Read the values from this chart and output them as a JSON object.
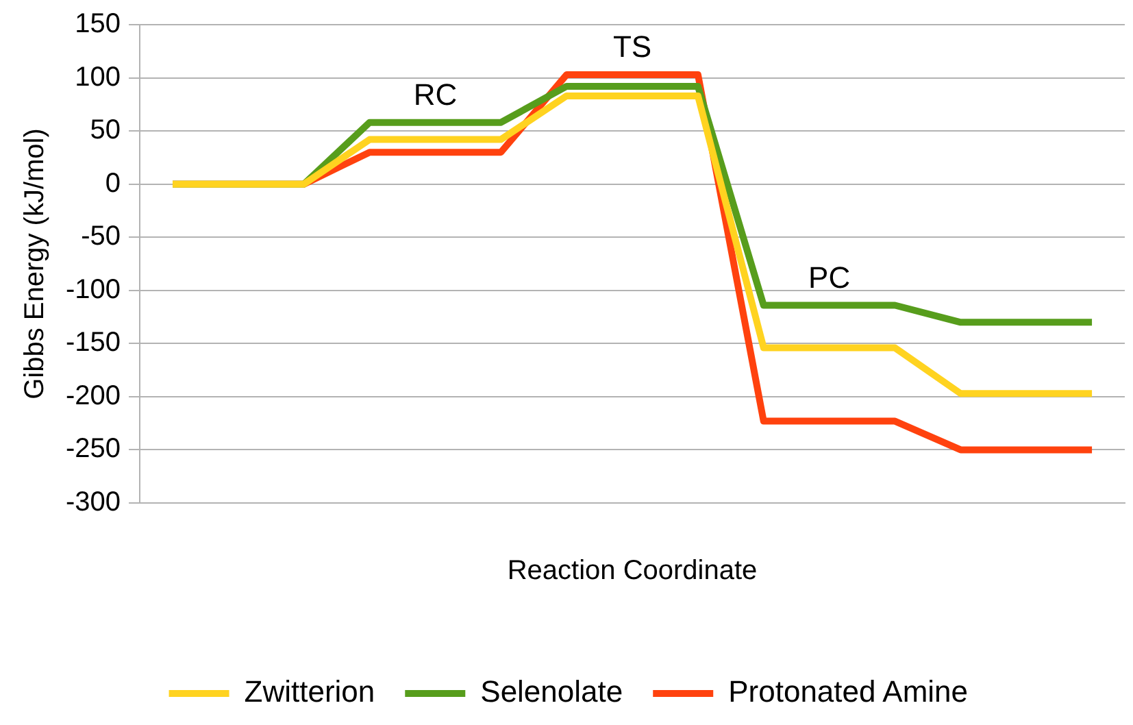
{
  "chart_data": {
    "type": "line",
    "xlabel": "Reaction Coordinate",
    "ylabel": "Gibbs Energy (kJ/mol)",
    "categories": [
      null,
      null,
      null,
      null,
      null,
      null,
      null,
      null,
      null,
      null,
      null,
      null,
      null,
      null,
      null
    ],
    "ylim": [
      -300,
      150
    ],
    "yticks": [
      -300,
      -250,
      -200,
      -150,
      -100,
      -50,
      0,
      50,
      100,
      150
    ],
    "series": [
      {
        "name": "Zwitterion",
        "color": "#ffd320",
        "values": [
          0,
          0,
          0,
          42,
          42,
          42,
          83,
          83,
          83,
          -154,
          -154,
          -154,
          -197,
          -197,
          -197
        ]
      },
      {
        "name": "Selenolate",
        "color": "#579d1c",
        "values": [
          0,
          0,
          0,
          58,
          58,
          58,
          92,
          92,
          92,
          -114,
          -114,
          -114,
          -130,
          -130,
          -130
        ]
      },
      {
        "name": "Protonated Amine",
        "color": "#ff420e",
        "values": [
          0,
          0,
          0,
          30,
          30,
          30,
          103,
          103,
          103,
          -223,
          -223,
          -223,
          -250,
          -250,
          -250
        ]
      }
    ],
    "annotations": [
      "RC",
      "TS",
      "PC"
    ],
    "grid": "y",
    "legend": "bottom",
    "tick_labels": "y",
    "marker": "none",
    "line_style": "solid"
  }
}
